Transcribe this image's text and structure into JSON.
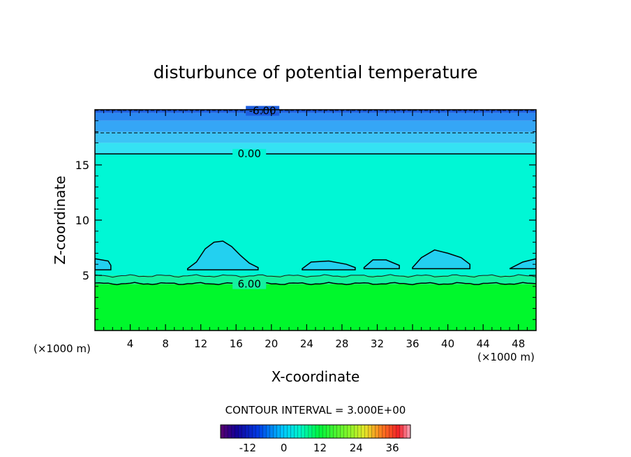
{
  "chart_data": {
    "type": "heatmap",
    "title": "disturbunce of potential temperature",
    "xlabel": "X-coordinate",
    "ylabel": "Z-coordinate",
    "x_unit_left": "(×1000 m)",
    "x_unit_right": "(×1000 m)",
    "xlim": [
      0,
      50
    ],
    "ylim": [
      0,
      20
    ],
    "x_ticks": [
      4,
      8,
      12,
      16,
      20,
      24,
      28,
      32,
      36,
      40,
      44,
      48
    ],
    "y_ticks": [
      5,
      10,
      15
    ],
    "contour_interval_text": "CONTOUR INTERVAL = 3.000E+00",
    "contour_labels": [
      {
        "text": "-6.00",
        "x": 19,
        "z": 19.9
      },
      {
        "text": "0.00",
        "x": 17.5,
        "z": 16.0
      },
      {
        "text": "6.00",
        "x": 17.5,
        "z": 4.2
      }
    ],
    "bands": [
      {
        "z0": 19.7,
        "z1": 20.0,
        "color": "#1e5fe0"
      },
      {
        "z0": 19.0,
        "z1": 19.7,
        "color": "#2a88f0"
      },
      {
        "z0": 18.0,
        "z1": 19.0,
        "color": "#35a6f6"
      },
      {
        "z0": 17.0,
        "z1": 18.0,
        "color": "#3dc3f6"
      },
      {
        "z0": 16.0,
        "z1": 17.0,
        "color": "#35e2f3"
      },
      {
        "z0": 5.0,
        "z1": 16.0,
        "color": "#00f7d5"
      },
      {
        "z0": 4.2,
        "z1": 5.0,
        "color": "#14f0a0"
      },
      {
        "z0": 0.0,
        "z1": 4.2,
        "color": "#00f82c"
      }
    ],
    "cool_patches": [
      {
        "x": [
          10.5,
          11.5,
          12.5,
          13.5,
          14.5,
          15.5,
          16.5,
          17.5,
          18.5,
          18.5,
          10.5
        ],
        "z": [
          5.6,
          6.2,
          7.4,
          8.0,
          8.1,
          7.6,
          6.8,
          6.1,
          5.7,
          5.5,
          5.5
        ]
      },
      {
        "x": [
          0,
          1.5,
          1.8,
          1.8,
          0
        ],
        "z": [
          6.5,
          6.3,
          5.9,
          5.5,
          5.5
        ]
      },
      {
        "x": [
          23.5,
          24.5,
          26.5,
          28.5,
          29.5,
          29.5,
          23.5
        ],
        "z": [
          5.6,
          6.2,
          6.3,
          6.0,
          5.7,
          5.5,
          5.5
        ]
      },
      {
        "x": [
          30.5,
          31.5,
          33,
          34.5,
          34.5,
          30.5
        ],
        "z": [
          5.7,
          6.4,
          6.4,
          5.9,
          5.6,
          5.6
        ]
      },
      {
        "x": [
          36,
          37,
          38.5,
          40,
          41.5,
          42.5,
          42.5,
          36
        ],
        "z": [
          5.7,
          6.6,
          7.3,
          7.0,
          6.6,
          6.0,
          5.6,
          5.6
        ]
      },
      {
        "x": [
          47,
          48.5,
          50,
          50,
          47
        ],
        "z": [
          5.6,
          6.2,
          6.5,
          5.6,
          5.6
        ]
      }
    ],
    "colorbar": {
      "min": -21,
      "max": 42,
      "tick_labels": [
        "-12",
        "0",
        "12",
        "24",
        "36"
      ],
      "tick_values": [
        -12,
        0,
        12,
        24,
        36
      ]
    },
    "grid": false,
    "legend": "bottom-center"
  }
}
